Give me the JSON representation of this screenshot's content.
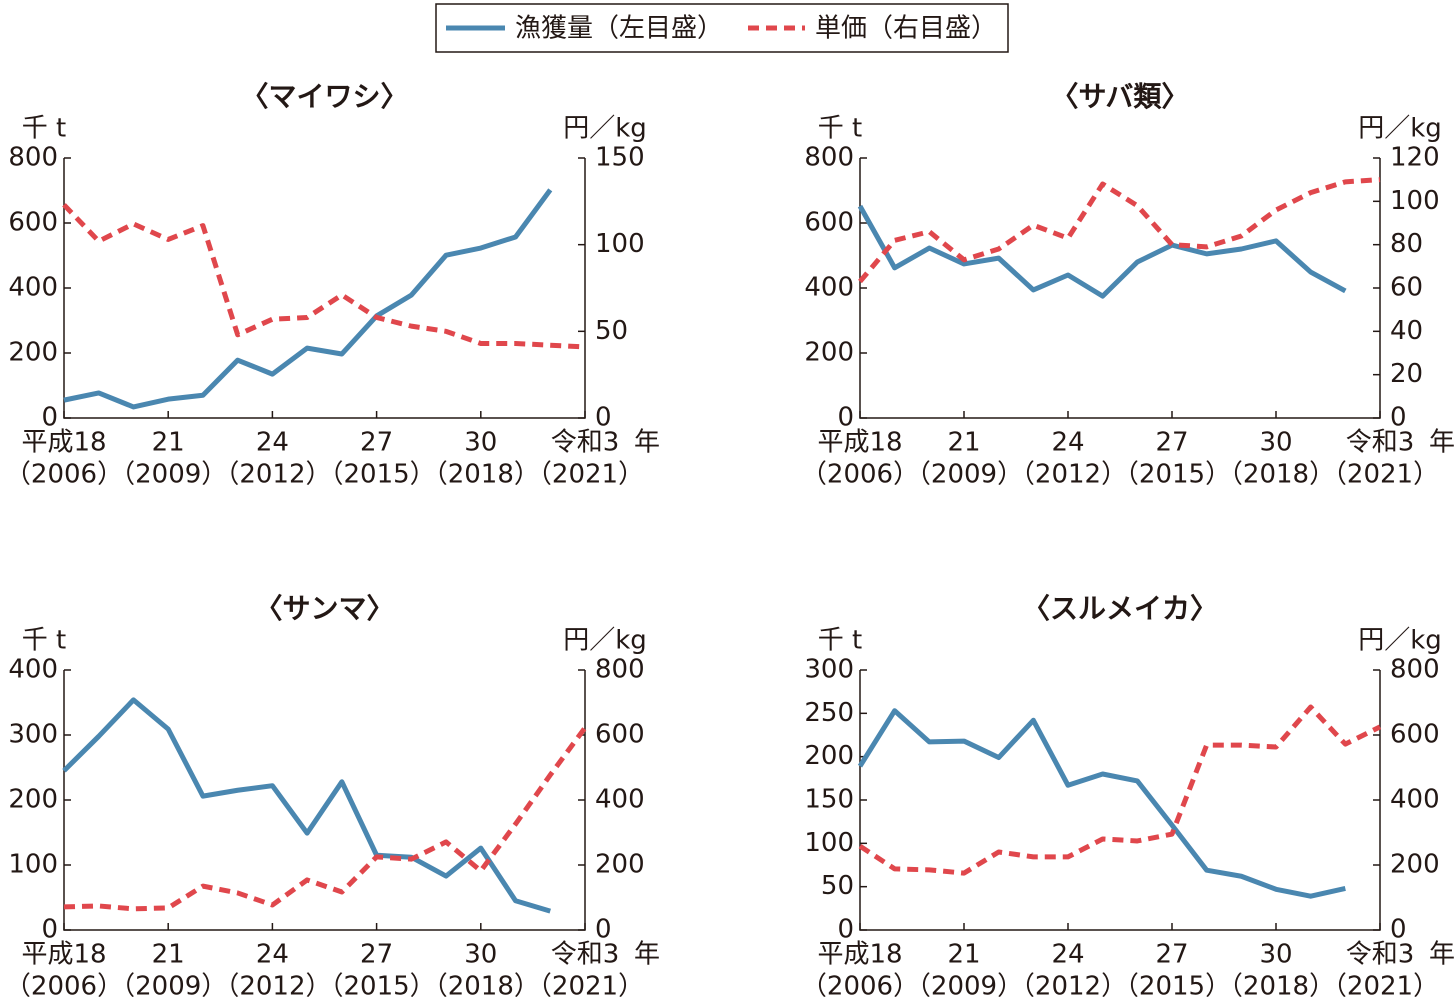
{
  "chart_data": [
    {
      "type": "line",
      "title": "〈マイワシ〉",
      "ylabel": "千 t",
      "y2label": "円／kg",
      "x_unit": "年",
      "categories": [
        "平成18",
        null,
        null,
        "21",
        null,
        null,
        "24",
        null,
        null,
        "27",
        null,
        null,
        "30",
        null,
        null,
        "令和3"
      ],
      "x_sublabels": [
        "（2006）",
        null,
        null,
        "（2009）",
        null,
        null,
        "（2012）",
        null,
        null,
        "（2015）",
        null,
        null,
        "（2018）",
        null,
        null,
        "（2021）"
      ],
      "ylim": [
        0,
        800
      ],
      "yticks": [
        0,
        200,
        400,
        600,
        800
      ],
      "y2lim": [
        0,
        150
      ],
      "y2ticks": [
        0,
        50,
        100,
        150
      ],
      "series": [
        {
          "name": "漁獲量（左目盛）",
          "color": "#4a87b0",
          "linestyle": "solid",
          "values": [
            55,
            77,
            34,
            58,
            70,
            178,
            135,
            215,
            197,
            314,
            378,
            501,
            523,
            557,
            702,
            null
          ]
        },
        {
          "name": "単価（右目盛）",
          "color": "#e0474c",
          "linestyle": "dashed",
          "axis": "y2",
          "values": [
            123,
            102,
            112,
            103,
            111,
            48,
            57,
            58,
            71,
            58,
            53,
            50,
            43,
            43,
            42,
            41
          ]
        }
      ]
    },
    {
      "type": "line",
      "title": "〈サバ類〉",
      "ylabel": "千 t",
      "y2label": "円／kg",
      "x_unit": "年",
      "categories": [
        "平成18",
        null,
        null,
        "21",
        null,
        null,
        "24",
        null,
        null,
        "27",
        null,
        null,
        "30",
        null,
        null,
        "令和3"
      ],
      "x_sublabels": [
        "（2006）",
        null,
        null,
        "（2009）",
        null,
        null,
        "（2012）",
        null,
        null,
        "（2015）",
        null,
        null,
        "（2018）",
        null,
        null,
        "（2021）"
      ],
      "ylim": [
        0,
        800
      ],
      "yticks": [
        0,
        200,
        400,
        600,
        800
      ],
      "y2lim": [
        0,
        120
      ],
      "y2ticks": [
        0,
        20,
        40,
        60,
        80,
        100,
        120
      ],
      "series": [
        {
          "name": "漁獲量（左目盛）",
          "color": "#4a87b0",
          "linestyle": "solid",
          "values": [
            652,
            462,
            523,
            474,
            492,
            394,
            440,
            375,
            480,
            532,
            505,
            520,
            545,
            449,
            391,
            null
          ]
        },
        {
          "name": "単価（右目盛）",
          "color": "#e0474c",
          "linestyle": "dashed",
          "axis": "y2",
          "values": [
            63,
            82,
            86,
            73,
            78,
            89,
            83,
            108,
            98,
            80,
            79,
            84,
            96,
            104,
            109,
            110
          ]
        }
      ]
    },
    {
      "type": "line",
      "title": "〈サンマ〉",
      "ylabel": "千 t",
      "y2label": "円／kg",
      "x_unit": "年",
      "categories": [
        "平成18",
        null,
        null,
        "21",
        null,
        null,
        "24",
        null,
        null,
        "27",
        null,
        null,
        "30",
        null,
        null,
        "令和3"
      ],
      "x_sublabels": [
        "（2006）",
        null,
        null,
        "（2009）",
        null,
        null,
        "（2012）",
        null,
        null,
        "（2015）",
        null,
        null,
        "（2018）",
        null,
        null,
        "（2021）"
      ],
      "ylim": [
        0,
        400
      ],
      "yticks": [
        0,
        100,
        200,
        300,
        400
      ],
      "y2lim": [
        0,
        800
      ],
      "y2ticks": [
        0,
        200,
        400,
        600,
        800
      ],
      "series": [
        {
          "name": "漁獲量（左目盛）",
          "color": "#4a87b0",
          "linestyle": "solid",
          "values": [
            245,
            298,
            354,
            309,
            206,
            215,
            222,
            149,
            228,
            115,
            112,
            83,
            126,
            45,
            29,
            null
          ]
        },
        {
          "name": "単価（右目盛）",
          "color": "#e0474c",
          "linestyle": "dashed",
          "axis": "y2",
          "values": [
            71,
            74,
            65,
            68,
            135,
            114,
            77,
            154,
            117,
            225,
            218,
            271,
            182,
            326,
            477,
            622
          ]
        }
      ]
    },
    {
      "type": "line",
      "title": "〈スルメイカ〉",
      "ylabel": "千 t",
      "y2label": "円／kg",
      "x_unit": "年",
      "categories": [
        "平成18",
        null,
        null,
        "21",
        null,
        null,
        "24",
        null,
        null,
        "27",
        null,
        null,
        "30",
        null,
        null,
        "令和3"
      ],
      "x_sublabels": [
        "（2006）",
        null,
        null,
        "（2009）",
        null,
        null,
        "（2012）",
        null,
        null,
        "（2015）",
        null,
        null,
        "（2018）",
        null,
        null,
        "（2021）"
      ],
      "ylim": [
        0,
        300
      ],
      "yticks": [
        0,
        50,
        100,
        150,
        200,
        250,
        300
      ],
      "y2lim": [
        0,
        800
      ],
      "y2ticks": [
        0,
        200,
        400,
        600,
        800
      ],
      "series": [
        {
          "name": "漁獲量（左目盛）",
          "color": "#4a87b0",
          "linestyle": "solid",
          "values": [
            189,
            253,
            217,
            218,
            199,
            242,
            167,
            180,
            172,
            121,
            69,
            62,
            47,
            39,
            48,
            null
          ]
        },
        {
          "name": "単価（右目盛）",
          "color": "#e0474c",
          "linestyle": "dashed",
          "axis": "y2",
          "values": [
            258,
            188,
            185,
            175,
            240,
            225,
            225,
            280,
            274,
            295,
            569,
            569,
            563,
            686,
            572,
            625
          ]
        }
      ]
    }
  ]
}
